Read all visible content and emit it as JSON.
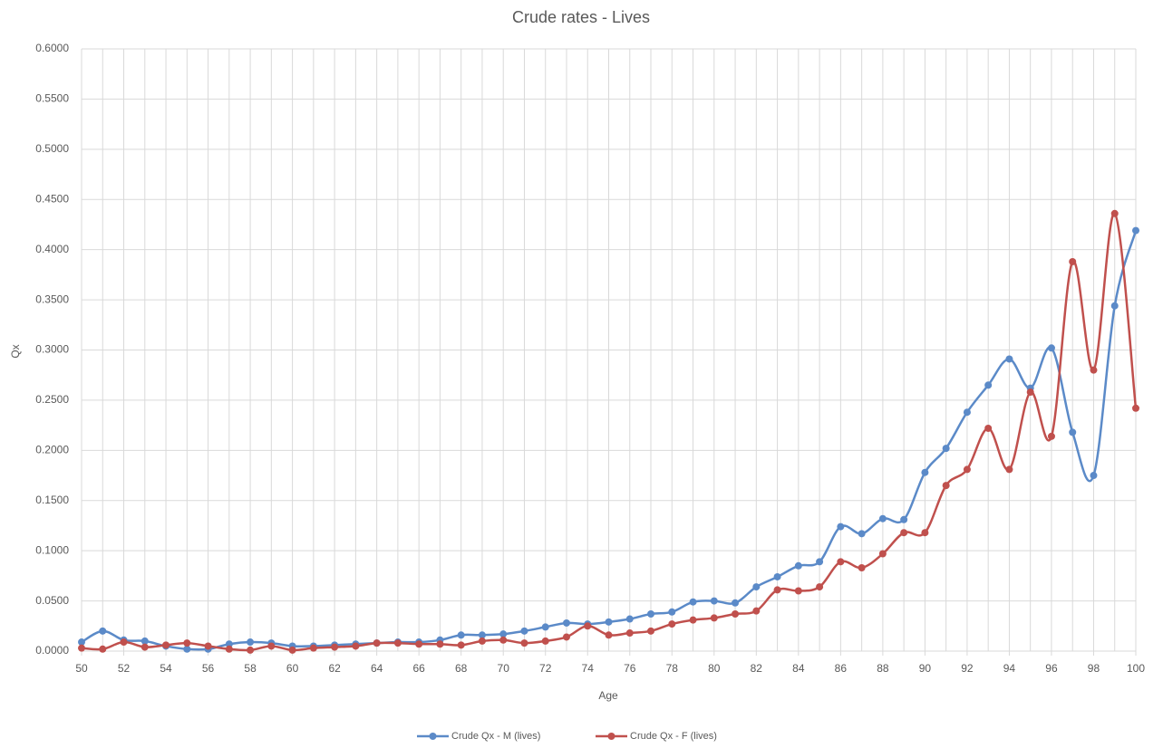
{
  "chart_data": {
    "type": "line",
    "title": "Crude rates - Lives",
    "x_label": "Age",
    "y_label": "Qx",
    "x": [
      50,
      51,
      52,
      53,
      54,
      55,
      56,
      57,
      58,
      59,
      60,
      61,
      62,
      63,
      64,
      65,
      66,
      67,
      68,
      69,
      70,
      71,
      72,
      73,
      74,
      75,
      76,
      77,
      78,
      79,
      80,
      81,
      82,
      83,
      84,
      85,
      86,
      87,
      88,
      89,
      90,
      91,
      92,
      93,
      94,
      95,
      96,
      97,
      98,
      99,
      100
    ],
    "series": [
      {
        "name": "Crude Qx - M (lives)",
        "color": "#5b8ac8",
        "values": [
          0.009,
          0.02,
          0.011,
          0.01,
          0.005,
          0.002,
          0.002,
          0.007,
          0.009,
          0.008,
          0.005,
          0.005,
          0.006,
          0.007,
          0.008,
          0.009,
          0.009,
          0.011,
          0.016,
          0.016,
          0.017,
          0.02,
          0.024,
          0.028,
          0.027,
          0.029,
          0.032,
          0.037,
          0.039,
          0.049,
          0.05,
          0.048,
          0.064,
          0.074,
          0.085,
          0.089,
          0.124,
          0.117,
          0.132,
          0.131,
          0.178,
          0.202,
          0.238,
          0.265,
          0.291,
          0.262,
          0.302,
          0.218,
          0.175,
          0.344,
          0.419
        ]
      },
      {
        "name": "Crude Qx - F (lives)",
        "color": "#c0504d",
        "values": [
          0.003,
          0.002,
          0.009,
          0.004,
          0.006,
          0.008,
          0.005,
          0.002,
          0.001,
          0.005,
          0.001,
          0.003,
          0.004,
          0.005,
          0.008,
          0.008,
          0.007,
          0.007,
          0.006,
          0.01,
          0.011,
          0.008,
          0.01,
          0.014,
          0.025,
          0.016,
          0.018,
          0.02,
          0.027,
          0.031,
          0.033,
          0.037,
          0.04,
          0.061,
          0.06,
          0.064,
          0.089,
          0.083,
          0.097,
          0.118,
          0.118,
          0.165,
          0.181,
          0.222,
          0.181,
          0.258,
          0.214,
          0.388,
          0.28,
          0.436,
          0.242
        ]
      }
    ],
    "xlim": [
      50,
      100
    ],
    "xticks": [
      50,
      52,
      54,
      56,
      58,
      60,
      62,
      64,
      66,
      68,
      70,
      72,
      74,
      76,
      78,
      80,
      82,
      84,
      86,
      88,
      90,
      92,
      94,
      96,
      98,
      100
    ],
    "ylim": [
      0,
      0.6
    ],
    "yticks": [
      {
        "value": 0,
        "label": "0.0000"
      },
      {
        "value": 0.05,
        "label": "0.0500"
      },
      {
        "value": 0.1,
        "label": "0.1000"
      },
      {
        "value": 0.15,
        "label": "0.1500"
      },
      {
        "value": 0.2,
        "label": "0.2000"
      },
      {
        "value": 0.25,
        "label": "0.2500"
      },
      {
        "value": 0.3,
        "label": "0.3000"
      },
      {
        "value": 0.35,
        "label": "0.3500"
      },
      {
        "value": 0.4,
        "label": "0.4000"
      },
      {
        "value": 0.45,
        "label": "0.4500"
      },
      {
        "value": 0.5,
        "label": "0.5000"
      },
      {
        "value": 0.55,
        "label": "0.5500"
      },
      {
        "value": 0.6,
        "label": "0.6000"
      }
    ],
    "grid": true,
    "smooth": true,
    "legend": "bottom"
  }
}
